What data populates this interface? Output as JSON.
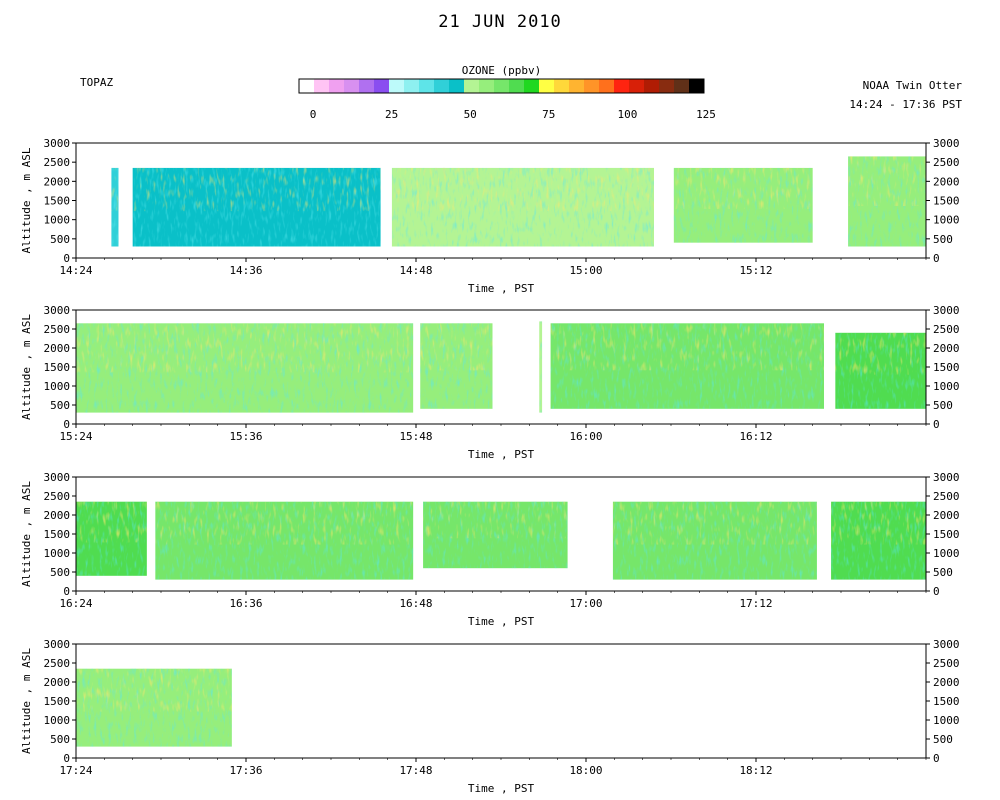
{
  "title": "21 JUN 2010",
  "left_label": "TOPAZ",
  "right_label_line1": "NOAA Twin Otter",
  "right_label_line2": "14:24 - 17:36 PST",
  "colorbar": {
    "title": "OZONE (ppbv)",
    "min": 0,
    "max": 125,
    "tick_labels": [
      "0",
      "25",
      "50",
      "75",
      "100",
      "125"
    ],
    "tick_values": [
      0,
      25,
      50,
      75,
      100,
      125
    ],
    "colors": [
      "#ffffff",
      "#ffc4f4",
      "#f0a0f0",
      "#d890f0",
      "#b070f0",
      "#8a4ef0",
      "#bdfafa",
      "#8ef0f0",
      "#5ee4e8",
      "#30d0d8",
      "#0ac0c8",
      "#b4f494",
      "#96ee7c",
      "#76e66a",
      "#50dc50",
      "#20d820",
      "#ffff44",
      "#ffd83a",
      "#ffb430",
      "#ff9428",
      "#ff701c",
      "#ff2410",
      "#d82008",
      "#b01c04",
      "#882c10",
      "#603018",
      "#000000"
    ]
  },
  "chart_data": {
    "type": "heatmap",
    "title": "21 JUN 2010",
    "variable": "OZONE (ppbv)",
    "panels": [
      {
        "x_start": "14:24",
        "x_end": "15:24",
        "xticks": [
          "14:24",
          "14:36",
          "14:48",
          "15:00",
          "15:12"
        ],
        "segments": [
          {
            "start": "14:26.5",
            "end": "14:27.0",
            "bottom": 300,
            "top": 2350,
            "mean_ppb": 45
          },
          {
            "start": "14:28.0",
            "end": "14:45.5",
            "bottom": 300,
            "top": 2350,
            "mean_ppb": 52
          },
          {
            "start": "14:46.3",
            "end": "15:04.8",
            "bottom": 300,
            "top": 2350,
            "mean_ppb": 55
          },
          {
            "start": "15:06.2",
            "end": "15:16.0",
            "bottom": 400,
            "top": 2350,
            "mean_ppb": 62
          },
          {
            "start": "15:18.5",
            "end": "15:24.0",
            "bottom": 300,
            "top": 2650,
            "mean_ppb": 60
          }
        ]
      },
      {
        "x_start": "15:24",
        "x_end": "16:24",
        "xticks": [
          "15:24",
          "15:36",
          "15:48",
          "16:00",
          "16:12"
        ],
        "segments": [
          {
            "start": "15:24.0",
            "end": "15:47.8",
            "bottom": 300,
            "top": 2650,
            "mean_ppb": 62
          },
          {
            "start": "15:48.3",
            "end": "15:53.4",
            "bottom": 400,
            "top": 2650,
            "mean_ppb": 58
          },
          {
            "start": "15:56.7",
            "end": "15:56.9",
            "bottom": 300,
            "top": 2700,
            "mean_ppb": 55
          },
          {
            "start": "15:57.5",
            "end": "16:16.8",
            "bottom": 400,
            "top": 2650,
            "mean_ppb": 63
          },
          {
            "start": "16:17.6",
            "end": "16:24.0",
            "bottom": 400,
            "top": 2400,
            "mean_ppb": 72
          }
        ]
      },
      {
        "x_start": "16:24",
        "x_end": "17:24",
        "xticks": [
          "16:24",
          "16:36",
          "16:48",
          "17:00",
          "17:12"
        ],
        "segments": [
          {
            "start": "16:24.0",
            "end": "16:29.0",
            "bottom": 400,
            "top": 2350,
            "mean_ppb": 72
          },
          {
            "start": "16:29.6",
            "end": "16:47.8",
            "bottom": 300,
            "top": 2350,
            "mean_ppb": 66
          },
          {
            "start": "16:48.5",
            "end": "16:58.7",
            "bottom": 600,
            "top": 2350,
            "mean_ppb": 64
          },
          {
            "start": "17:01.9",
            "end": "17:16.3",
            "bottom": 300,
            "top": 2350,
            "mean_ppb": 64
          },
          {
            "start": "17:17.3",
            "end": "17:24.0",
            "bottom": 300,
            "top": 2350,
            "mean_ppb": 68
          }
        ]
      },
      {
        "x_start": "17:24",
        "x_end": "18:24",
        "xticks": [
          "17:24",
          "17:36",
          "17:48",
          "18:00",
          "18:12"
        ],
        "segments": [
          {
            "start": "17:24.0",
            "end": "17:35.0",
            "bottom": 300,
            "top": 2350,
            "mean_ppb": 62
          }
        ]
      }
    ],
    "yticks": [
      0,
      500,
      1000,
      1500,
      2000,
      2500,
      3000
    ],
    "ylim": [
      0,
      3000
    ],
    "ylabel": "Altitude , m ASL",
    "xlabel": "Time , PST"
  }
}
